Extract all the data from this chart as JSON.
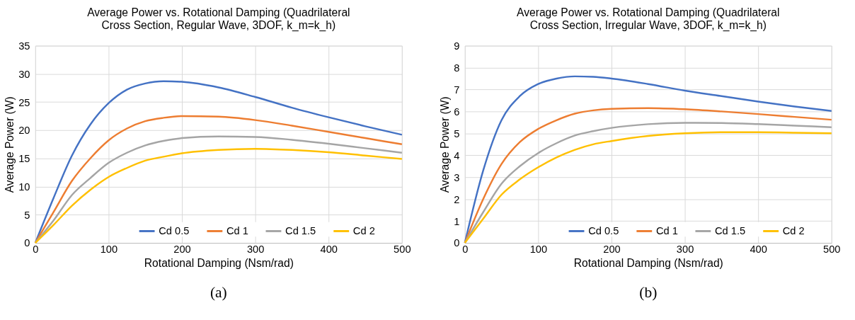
{
  "chart_data": [
    {
      "type": "line",
      "title": [
        "Average Power vs. Rotational Damping (Quadrilateral",
        "Cross Section, Regular Wave, 3DOF, k_m=k_h)"
      ],
      "xlabel": "Rotational Damping (Nsm/rad)",
      "ylabel": "Average Power (W)",
      "x": [
        0,
        25,
        50,
        75,
        100,
        125,
        150,
        175,
        200,
        250,
        300,
        350,
        400,
        450,
        500
      ],
      "series": [
        {
          "name": "Cd 0.5",
          "color": "#4472c4",
          "values": [
            0,
            8,
            15.5,
            21,
            24.8,
            27.2,
            28.3,
            28.7,
            28.6,
            27.6,
            25.9,
            24,
            22.3,
            20.7,
            19.2
          ]
        },
        {
          "name": "Cd 1",
          "color": "#ed7d31",
          "values": [
            0,
            5.5,
            11,
            15,
            18.2,
            20.3,
            21.6,
            22.2,
            22.5,
            22.4,
            21.8,
            20.8,
            19.7,
            18.6,
            17.5
          ]
        },
        {
          "name": "Cd 1.5",
          "color": "#a5a5a5",
          "values": [
            0,
            4,
            8.5,
            11.5,
            14.2,
            16,
            17.3,
            18.1,
            18.6,
            18.9,
            18.8,
            18.3,
            17.6,
            16.8,
            16
          ]
        },
        {
          "name": "Cd 2",
          "color": "#ffc000",
          "values": [
            0,
            3.2,
            6.6,
            9.4,
            11.7,
            13.3,
            14.6,
            15.3,
            15.9,
            16.5,
            16.7,
            16.5,
            16.1,
            15.5,
            14.9
          ]
        }
      ],
      "xlim": [
        0,
        500
      ],
      "xticks": [
        0,
        100,
        200,
        300,
        400,
        500
      ],
      "ylim": [
        0,
        35
      ],
      "yticks": [
        0,
        5,
        10,
        15,
        20,
        25,
        30,
        35
      ],
      "grid": true,
      "legend": "bottom",
      "annotations": [
        "(a)"
      ]
    },
    {
      "type": "line",
      "title": [
        "Average Power vs. Rotational Damping (Quadrilateral",
        "Cross Section, Irregular Wave, 3DOF, k_m=k_h)"
      ],
      "xlabel": "Rotational Damping (Nsm/rad)",
      "ylabel": "Average Power (W)",
      "x": [
        0,
        25,
        50,
        75,
        100,
        125,
        150,
        175,
        200,
        250,
        300,
        350,
        400,
        450,
        500
      ],
      "series": [
        {
          "name": "Cd 0.5",
          "color": "#4472c4",
          "values": [
            0,
            3.3,
            5.6,
            6.7,
            7.25,
            7.5,
            7.6,
            7.58,
            7.5,
            7.25,
            6.95,
            6.7,
            6.45,
            6.22,
            6.02
          ]
        },
        {
          "name": "Cd 1",
          "color": "#ed7d31",
          "values": [
            0,
            2,
            3.6,
            4.6,
            5.2,
            5.6,
            5.9,
            6.05,
            6.12,
            6.15,
            6.1,
            6.0,
            5.88,
            5.75,
            5.62
          ]
        },
        {
          "name": "Cd 1.5",
          "color": "#a5a5a5",
          "values": [
            0,
            1.4,
            2.7,
            3.5,
            4.1,
            4.55,
            4.9,
            5.1,
            5.25,
            5.42,
            5.48,
            5.47,
            5.42,
            5.35,
            5.28
          ]
        },
        {
          "name": "Cd 2",
          "color": "#ffc000",
          "values": [
            0,
            1.1,
            2.2,
            2.9,
            3.45,
            3.9,
            4.25,
            4.5,
            4.65,
            4.88,
            5.0,
            5.05,
            5.05,
            5.03,
            5.0
          ]
        }
      ],
      "xlim": [
        0,
        500
      ],
      "xticks": [
        0,
        100,
        200,
        300,
        400,
        500
      ],
      "ylim": [
        0,
        9
      ],
      "yticks": [
        0,
        1,
        2,
        3,
        4,
        5,
        6,
        7,
        8,
        9
      ],
      "grid": true,
      "legend": "bottom",
      "annotations": [
        "(b)"
      ]
    }
  ]
}
